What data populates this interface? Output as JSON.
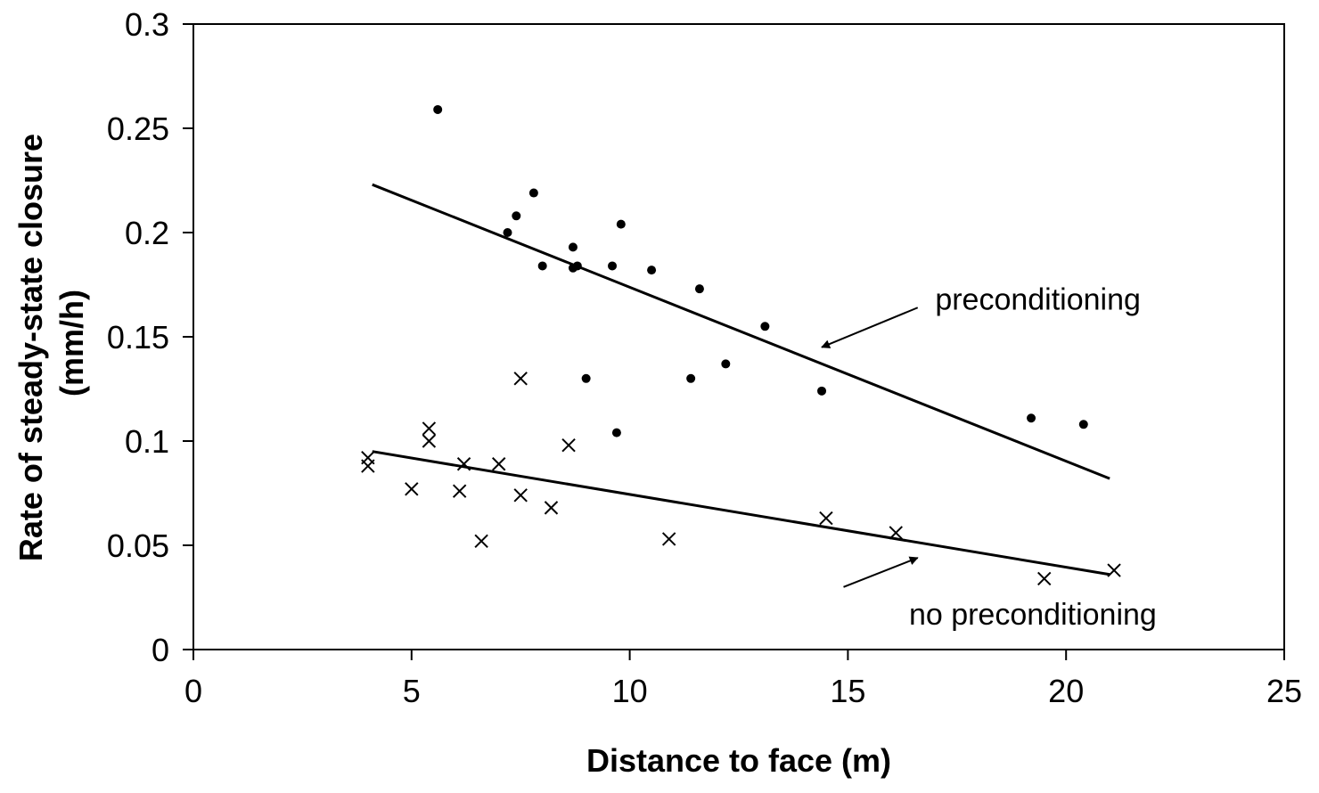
{
  "chart_data": {
    "type": "scatter",
    "xlabel": "Distance to face (m)",
    "ylabel_lines": [
      "Rate of steady-state closure",
      "(mm/h)"
    ],
    "xlim": [
      0,
      25
    ],
    "ylim": [
      0,
      0.3
    ],
    "x_ticks": [
      0,
      5,
      10,
      15,
      20,
      25
    ],
    "y_ticks": [
      0,
      0.05,
      0.1,
      0.15,
      0.2,
      0.25,
      0.3
    ],
    "x_tick_labels": [
      "0",
      "5",
      "10",
      "15",
      "20",
      "25"
    ],
    "y_tick_labels": [
      "0",
      "0.05",
      "0.1",
      "0.15",
      "0.2",
      "0.25",
      "0.3"
    ],
    "grid": false,
    "series": [
      {
        "name": "preconditioning",
        "marker": "dot",
        "points": [
          [
            5.6,
            0.259
          ],
          [
            7.2,
            0.2
          ],
          [
            7.4,
            0.208
          ],
          [
            7.8,
            0.219
          ],
          [
            8.0,
            0.184
          ],
          [
            8.7,
            0.193
          ],
          [
            8.7,
            0.183
          ],
          [
            8.8,
            0.184
          ],
          [
            9.0,
            0.13
          ],
          [
            9.6,
            0.184
          ],
          [
            9.7,
            0.104
          ],
          [
            9.8,
            0.204
          ],
          [
            10.5,
            0.182
          ],
          [
            11.4,
            0.13
          ],
          [
            11.6,
            0.173
          ],
          [
            12.2,
            0.137
          ],
          [
            13.1,
            0.155
          ],
          [
            14.4,
            0.124
          ],
          [
            19.2,
            0.111
          ],
          [
            20.4,
            0.108
          ]
        ],
        "trendline": [
          [
            4.1,
            0.223
          ],
          [
            21.0,
            0.082
          ]
        ]
      },
      {
        "name": "no preconditioning",
        "marker": "x",
        "points": [
          [
            4.0,
            0.092
          ],
          [
            4.0,
            0.088
          ],
          [
            5.0,
            0.077
          ],
          [
            5.4,
            0.106
          ],
          [
            5.4,
            0.1
          ],
          [
            6.1,
            0.076
          ],
          [
            6.2,
            0.089
          ],
          [
            6.6,
            0.052
          ],
          [
            7.0,
            0.089
          ],
          [
            7.5,
            0.13
          ],
          [
            7.5,
            0.074
          ],
          [
            8.2,
            0.068
          ],
          [
            8.6,
            0.098
          ],
          [
            10.9,
            0.053
          ],
          [
            14.5,
            0.063
          ],
          [
            16.1,
            0.056
          ],
          [
            19.5,
            0.034
          ],
          [
            21.1,
            0.038
          ]
        ],
        "trendline": [
          [
            4.1,
            0.095
          ],
          [
            21.0,
            0.036
          ]
        ]
      }
    ],
    "annotations": [
      {
        "text": "preconditioning",
        "label_at": [
          17.0,
          0.163
        ],
        "arrow_from": [
          16.6,
          0.164
        ],
        "arrow_to": [
          14.4,
          0.145
        ]
      },
      {
        "text": "no preconditioning",
        "label_at": [
          16.4,
          0.012
        ],
        "arrow_from": [
          14.9,
          0.03
        ],
        "arrow_to": [
          16.6,
          0.044
        ]
      }
    ]
  }
}
